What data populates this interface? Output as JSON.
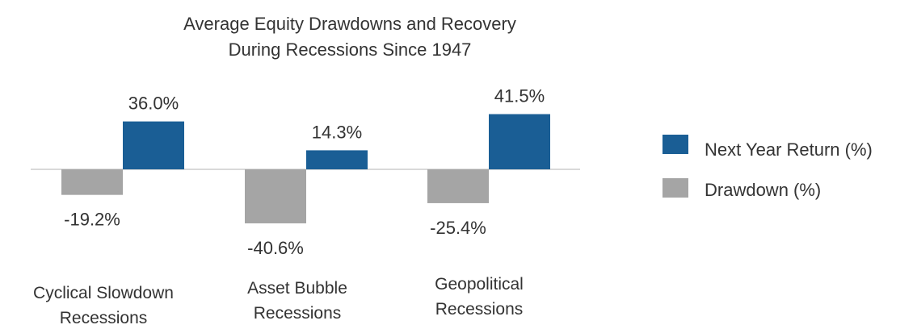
{
  "chart_data": {
    "type": "bar",
    "title_lines": [
      "Average Equity Drawdowns and Recovery",
      "During Recessions Since 1947"
    ],
    "categories": [
      [
        "Cyclical Slowdown",
        "Recessions"
      ],
      [
        "Asset Bubble",
        "Recessions"
      ],
      [
        "Geopolitical",
        "Recessions"
      ]
    ],
    "series": [
      {
        "name": "Drawdown (%)",
        "color": "#a5a5a5",
        "values": [
          -19.2,
          -40.6,
          -25.4
        ],
        "labels": [
          "-19.2%",
          "-40.6%",
          "-25.4%"
        ]
      },
      {
        "name": "Next Year Return (%)",
        "color": "#1a5e95",
        "values": [
          36.0,
          14.3,
          41.5
        ],
        "labels": [
          "36.0%",
          "14.3%",
          "41.5%"
        ]
      }
    ],
    "legend": {
      "position": "right",
      "entries": [
        {
          "label": "Next Year Return (%)",
          "color": "#1a5e95"
        },
        {
          "label": "Drawdown (%)",
          "color": "#a5a5a5"
        }
      ]
    },
    "zero_line_color": "#d9d9d9",
    "grid": false
  }
}
